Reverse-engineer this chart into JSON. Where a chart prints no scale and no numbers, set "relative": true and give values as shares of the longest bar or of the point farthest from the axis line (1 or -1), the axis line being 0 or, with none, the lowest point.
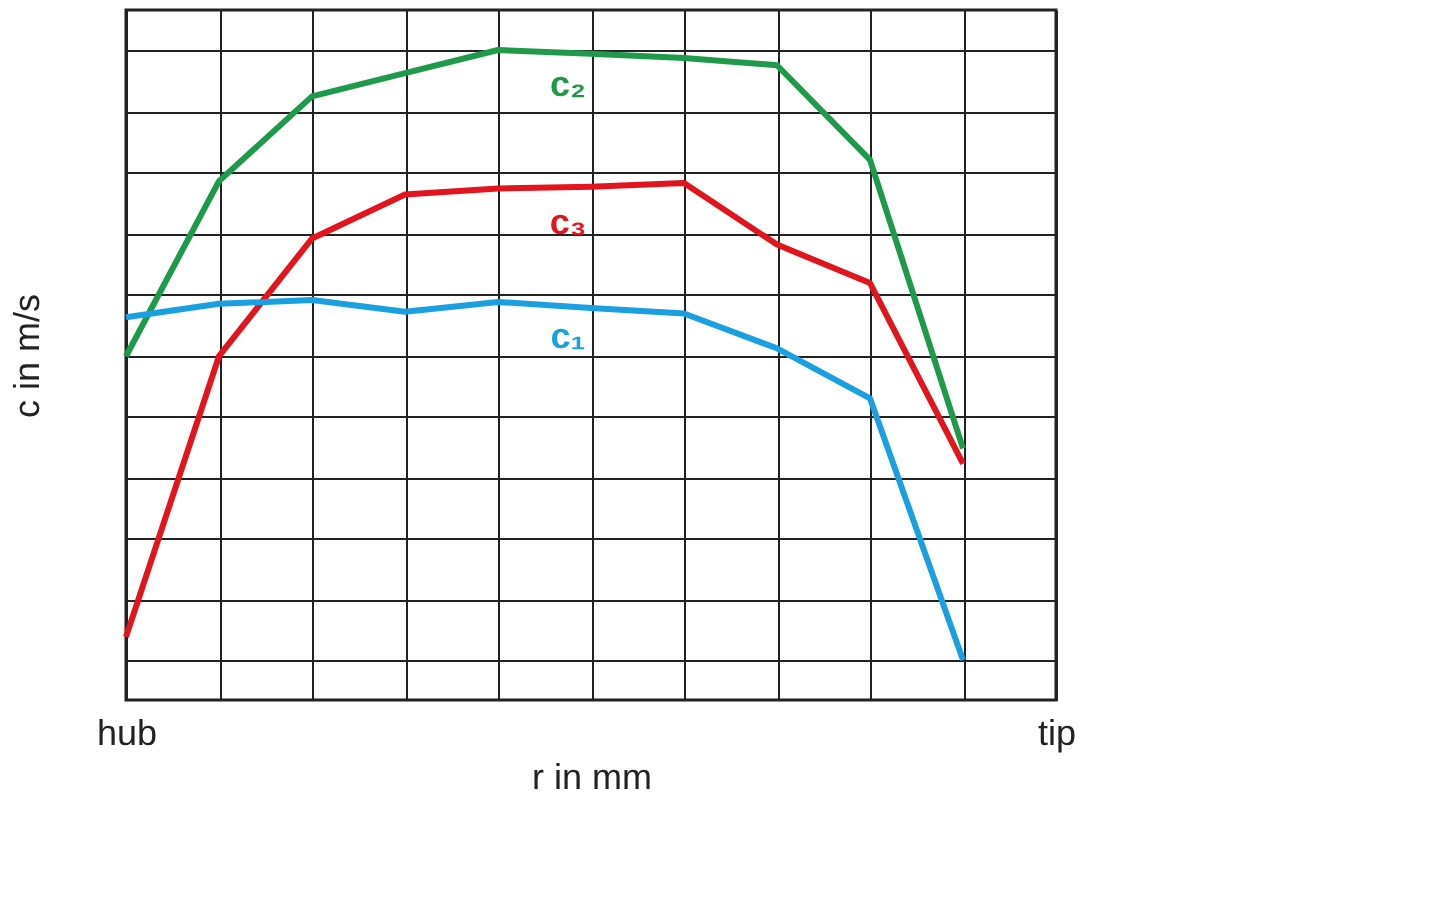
{
  "chart_data": {
    "type": "line",
    "relative": true,
    "xlabel": "r in mm",
    "ylabel": "c in m/s",
    "categories": [
      "hub",
      null,
      null,
      null,
      null,
      null,
      null,
      null,
      null,
      null,
      "tip"
    ],
    "series": [
      {
        "name": "c₂",
        "color": "#1e9a4a",
        "values": [
          0.498,
          0.785,
          0.924,
          0.962,
          1,
          0.994,
          0.987,
          0.975,
          0.82,
          0.347,
          null
        ]
      },
      {
        "name": "c₃",
        "color": "#e2141e",
        "values": [
          0.038,
          0.498,
          0.691,
          0.763,
          0.773,
          0.776,
          0.782,
          0.681,
          0.618,
          0.322,
          null
        ]
      },
      {
        "name": "c₁",
        "color": "#1a9fe0",
        "values": [
          0.562,
          0.584,
          0.59,
          0.571,
          0.587,
          0.577,
          0.568,
          0.511,
          0.429,
          0,
          null
        ]
      }
    ],
    "grid": true,
    "legend": false,
    "marker": "none",
    "line_style": "solid"
  }
}
